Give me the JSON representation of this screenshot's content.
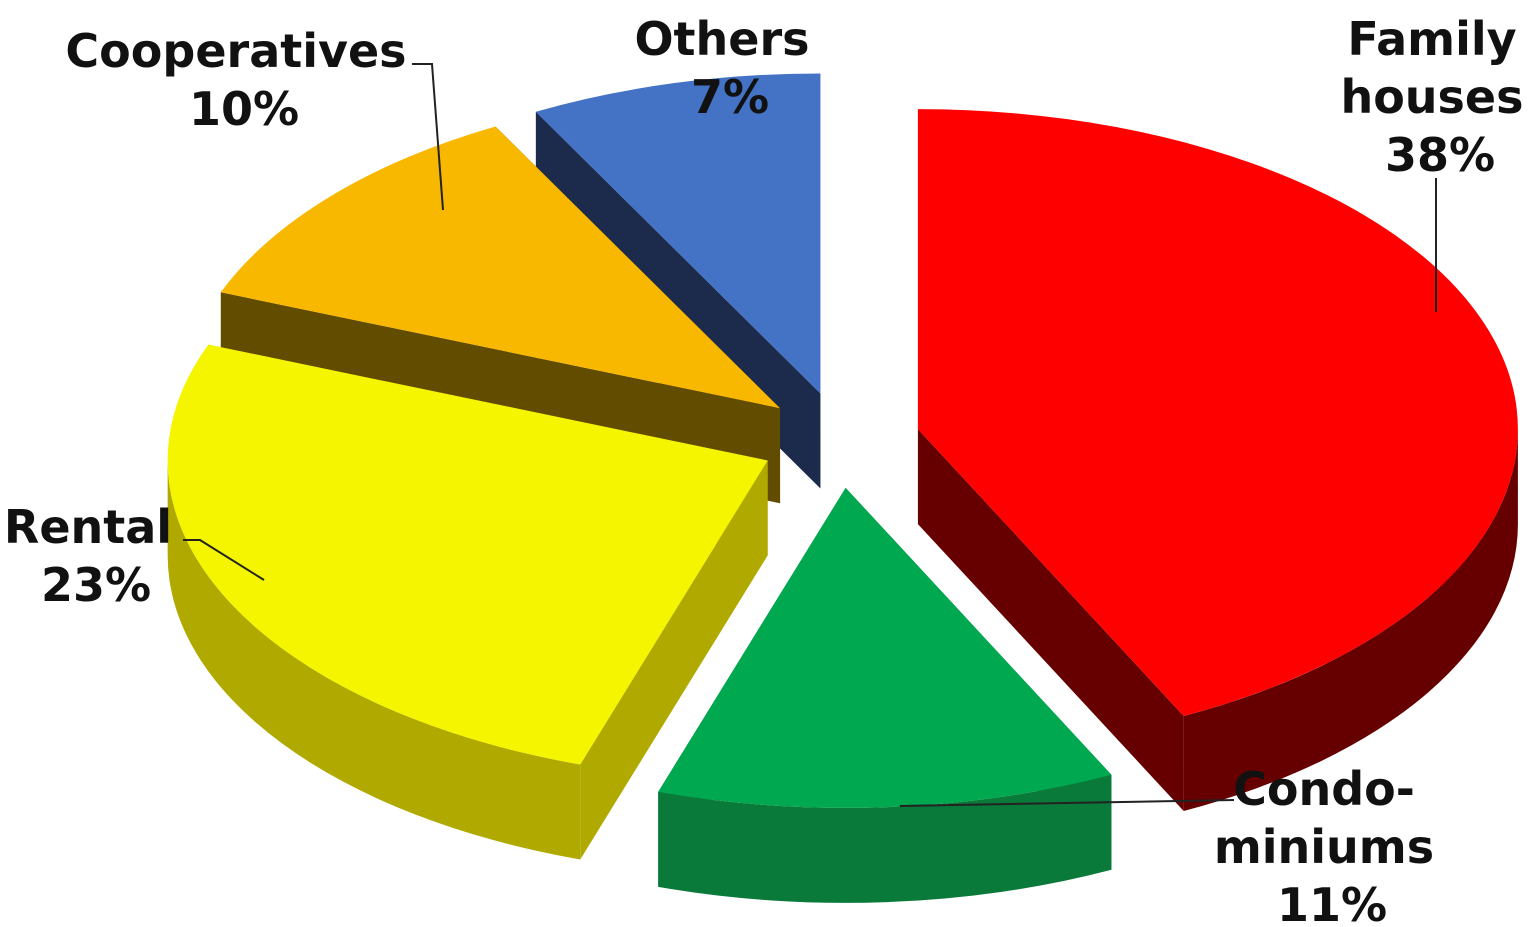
{
  "chart_data": {
    "type": "pie",
    "title": "",
    "style": "3d-exploded",
    "slices": [
      {
        "name_lines": [
          "Family",
          "houses"
        ],
        "value": 38,
        "label": "38%",
        "color": "#fe0000",
        "side_color": "#660000"
      },
      {
        "name_lines": [
          "Condo-",
          "miniums"
        ],
        "value": 11,
        "label": "11%",
        "color": "#00a84f",
        "side_color": "#0a7a3a"
      },
      {
        "name_lines": [
          "Rental"
        ],
        "value": 23,
        "label": "23%",
        "color": "#f5f500",
        "side_color": "#b0aa00"
      },
      {
        "name_lines": [
          "Cooperatives"
        ],
        "value": 10,
        "label": "10%",
        "color": "#f9b800",
        "side_color": "#624c00"
      },
      {
        "name_lines": [
          "Others"
        ],
        "value": 7,
        "label": "7%",
        "color": "#4472c4",
        "side_color": "#1c2a4b"
      }
    ]
  }
}
